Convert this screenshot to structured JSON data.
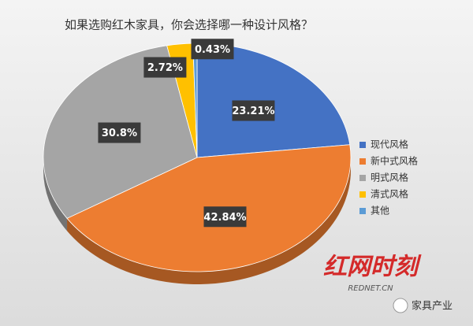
{
  "chart_data": {
    "type": "pie",
    "title": "如果选购红木家具，你会选择哪一种设计风格？",
    "categories": [
      "现代风格",
      "新中式风格",
      "明式风格",
      "清式风格",
      "其他"
    ],
    "values": [
      23.21,
      42.84,
      30.8,
      2.72,
      0.43
    ],
    "value_labels": [
      "23.21%",
      "42.84%",
      "30.8%",
      "2.72%",
      "0.43%"
    ],
    "colors": [
      "#4472c4",
      "#ed7d31",
      "#a5a5a5",
      "#ffc000",
      "#5b9bd5"
    ],
    "legend": "right",
    "watermark": [
      "红网时刻",
      "REDNET.CN",
      "家具产业"
    ]
  }
}
